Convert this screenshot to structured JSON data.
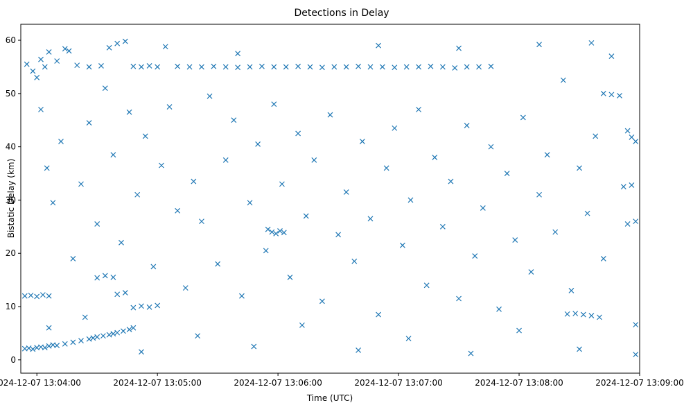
{
  "chart_data": {
    "type": "scatter",
    "title": "Detections in Delay",
    "xlabel": "Time (UTC)",
    "ylabel": "Bistatic Delay (km)",
    "marker": "x",
    "marker_color": "#1f77b4",
    "grid": false,
    "legend": "none",
    "xlim": [
      "2024-12-07 13:03:52",
      "2024-12-07 13:09:00"
    ],
    "ylim": [
      -2.5,
      63
    ],
    "x_ticks": [
      "2024-12-07 13:04:00",
      "2024-12-07 13:05:00",
      "2024-12-07 13:06:00",
      "2024-12-07 13:07:00",
      "2024-12-07 13:08:00",
      "2024-12-07 13:09:00"
    ],
    "y_ticks": [
      0,
      10,
      20,
      30,
      40,
      50,
      60
    ],
    "series": [
      {
        "points": [
          [
            "2024-12-07 13:03:54",
            2.1
          ],
          [
            "2024-12-07 13:03:56",
            2.2
          ],
          [
            "2024-12-07 13:03:58",
            2.0
          ],
          [
            "2024-12-07 13:04:00",
            2.3
          ],
          [
            "2024-12-07 13:04:02",
            2.4
          ],
          [
            "2024-12-07 13:04:04",
            2.3
          ],
          [
            "2024-12-07 13:04:06",
            2.6
          ],
          [
            "2024-12-07 13:04:08",
            2.8
          ],
          [
            "2024-12-07 13:04:10",
            2.7
          ],
          [
            "2024-12-07 13:04:14",
            3.0
          ],
          [
            "2024-12-07 13:04:18",
            3.3
          ],
          [
            "2024-12-07 13:04:22",
            3.6
          ],
          [
            "2024-12-07 13:04:26",
            3.9
          ],
          [
            "2024-12-07 13:04:28",
            4.1
          ],
          [
            "2024-12-07 13:04:30",
            4.3
          ],
          [
            "2024-12-07 13:04:33",
            4.5
          ],
          [
            "2024-12-07 13:04:36",
            4.7
          ],
          [
            "2024-12-07 13:04:38",
            4.9
          ],
          [
            "2024-12-07 13:04:40",
            5.1
          ],
          [
            "2024-12-07 13:04:43",
            5.4
          ],
          [
            "2024-12-07 13:04:46",
            5.7
          ],
          [
            "2024-12-07 13:04:48",
            6.0
          ],
          [
            "2024-12-07 13:03:54",
            12.0
          ],
          [
            "2024-12-07 13:03:57",
            12.1
          ],
          [
            "2024-12-07 13:04:00",
            11.9
          ],
          [
            "2024-12-07 13:04:03",
            12.2
          ],
          [
            "2024-12-07 13:04:06",
            12.0
          ],
          [
            "2024-12-07 13:04:30",
            15.4
          ],
          [
            "2024-12-07 13:04:34",
            15.8
          ],
          [
            "2024-12-07 13:04:38",
            15.5
          ],
          [
            "2024-12-07 13:04:40",
            12.3
          ],
          [
            "2024-12-07 13:04:44",
            12.6
          ],
          [
            "2024-12-07 13:04:48",
            9.8
          ],
          [
            "2024-12-07 13:04:52",
            10.1
          ],
          [
            "2024-12-07 13:04:56",
            9.9
          ],
          [
            "2024-12-07 13:05:00",
            10.2
          ],
          [
            "2024-12-07 13:03:55",
            55.5
          ],
          [
            "2024-12-07 13:03:58",
            54.2
          ],
          [
            "2024-12-07 13:04:00",
            53.0
          ],
          [
            "2024-12-07 13:04:02",
            56.4
          ],
          [
            "2024-12-07 13:04:04",
            55.0
          ],
          [
            "2024-12-07 13:04:06",
            57.8
          ],
          [
            "2024-12-07 13:04:10",
            56.1
          ],
          [
            "2024-12-07 13:04:14",
            58.4
          ],
          [
            "2024-12-07 13:04:20",
            55.3
          ],
          [
            "2024-12-07 13:04:26",
            55.0
          ],
          [
            "2024-12-07 13:04:32",
            55.2
          ],
          [
            "2024-12-07 13:04:36",
            58.6
          ],
          [
            "2024-12-07 13:04:40",
            59.4
          ],
          [
            "2024-12-07 13:04:44",
            59.8
          ],
          [
            "2024-12-07 13:04:48",
            55.1
          ],
          [
            "2024-12-07 13:04:52",
            55.0
          ],
          [
            "2024-12-07 13:04:56",
            55.2
          ],
          [
            "2024-12-07 13:05:00",
            55.0
          ],
          [
            "2024-12-07 13:05:04",
            58.8
          ],
          [
            "2024-12-07 13:05:10",
            55.1
          ],
          [
            "2024-12-07 13:05:16",
            55.0
          ],
          [
            "2024-12-07 13:05:22",
            55.0
          ],
          [
            "2024-12-07 13:05:28",
            55.1
          ],
          [
            "2024-12-07 13:05:34",
            55.0
          ],
          [
            "2024-12-07 13:05:40",
            54.9
          ],
          [
            "2024-12-07 13:05:46",
            55.0
          ],
          [
            "2024-12-07 13:05:52",
            55.1
          ],
          [
            "2024-12-07 13:05:58",
            55.0
          ],
          [
            "2024-12-07 13:06:04",
            55.0
          ],
          [
            "2024-12-07 13:06:10",
            55.1
          ],
          [
            "2024-12-07 13:06:16",
            55.0
          ],
          [
            "2024-12-07 13:06:22",
            54.9
          ],
          [
            "2024-12-07 13:06:28",
            55.0
          ],
          [
            "2024-12-07 13:06:34",
            55.0
          ],
          [
            "2024-12-07 13:06:40",
            55.1
          ],
          [
            "2024-12-07 13:06:46",
            55.0
          ],
          [
            "2024-12-07 13:06:52",
            55.0
          ],
          [
            "2024-12-07 13:06:58",
            54.9
          ],
          [
            "2024-12-07 13:07:04",
            55.0
          ],
          [
            "2024-12-07 13:07:10",
            55.0
          ],
          [
            "2024-12-07 13:07:16",
            55.1
          ],
          [
            "2024-12-07 13:07:22",
            55.0
          ],
          [
            "2024-12-07 13:07:28",
            54.8
          ],
          [
            "2024-12-07 13:07:34",
            55.0
          ],
          [
            "2024-12-07 13:07:40",
            55.0
          ],
          [
            "2024-12-07 13:07:46",
            55.1
          ],
          [
            "2024-12-07 13:05:55",
            24.5
          ],
          [
            "2024-12-07 13:05:57",
            24.0
          ],
          [
            "2024-12-07 13:05:59",
            23.7
          ],
          [
            "2024-12-07 13:06:01",
            24.2
          ],
          [
            "2024-12-07 13:06:03",
            23.9
          ],
          [
            "2024-12-07 13:08:24",
            8.6
          ],
          [
            "2024-12-07 13:08:28",
            8.7
          ],
          [
            "2024-12-07 13:08:32",
            8.5
          ],
          [
            "2024-12-07 13:08:36",
            8.3
          ],
          [
            "2024-12-07 13:08:40",
            8.0
          ],
          [
            "2024-12-07 13:08:42",
            50.0
          ],
          [
            "2024-12-07 13:08:46",
            49.8
          ],
          [
            "2024-12-07 13:08:50",
            49.6
          ],
          [
            "2024-12-07 13:08:54",
            43.0
          ],
          [
            "2024-12-07 13:08:56",
            41.8
          ],
          [
            "2024-12-07 13:08:58",
            41.0
          ],
          [
            "2024-12-07 13:08:52",
            32.5
          ],
          [
            "2024-12-07 13:08:56",
            32.8
          ],
          [
            "2024-12-07 13:08:54",
            25.5
          ],
          [
            "2024-12-07 13:08:58",
            26.0
          ],
          [
            "2024-12-07 13:08:58",
            6.6
          ],
          [
            "2024-12-07 13:08:58",
            1.0
          ],
          [
            "2024-12-07 13:04:02",
            47.0
          ],
          [
            "2024-12-07 13:04:05",
            36.0
          ],
          [
            "2024-12-07 13:04:08",
            29.5
          ],
          [
            "2024-12-07 13:04:12",
            41.0
          ],
          [
            "2024-12-07 13:04:18",
            19.0
          ],
          [
            "2024-12-07 13:04:22",
            33.0
          ],
          [
            "2024-12-07 13:04:26",
            44.5
          ],
          [
            "2024-12-07 13:04:30",
            25.5
          ],
          [
            "2024-12-07 13:04:34",
            51.0
          ],
          [
            "2024-12-07 13:04:38",
            38.5
          ],
          [
            "2024-12-07 13:04:42",
            22.0
          ],
          [
            "2024-12-07 13:04:46",
            46.5
          ],
          [
            "2024-12-07 13:04:50",
            31.0
          ],
          [
            "2024-12-07 13:04:54",
            42.0
          ],
          [
            "2024-12-07 13:04:58",
            17.5
          ],
          [
            "2024-12-07 13:05:02",
            36.5
          ],
          [
            "2024-12-07 13:05:06",
            47.5
          ],
          [
            "2024-12-07 13:05:10",
            28.0
          ],
          [
            "2024-12-07 13:05:14",
            13.5
          ],
          [
            "2024-12-07 13:05:18",
            33.5
          ],
          [
            "2024-12-07 13:05:22",
            26.0
          ],
          [
            "2024-12-07 13:05:26",
            49.5
          ],
          [
            "2024-12-07 13:05:30",
            18.0
          ],
          [
            "2024-12-07 13:05:34",
            37.5
          ],
          [
            "2024-12-07 13:05:38",
            45.0
          ],
          [
            "2024-12-07 13:05:42",
            12.0
          ],
          [
            "2024-12-07 13:05:46",
            29.5
          ],
          [
            "2024-12-07 13:05:50",
            40.5
          ],
          [
            "2024-12-07 13:05:54",
            20.5
          ],
          [
            "2024-12-07 13:05:58",
            48.0
          ],
          [
            "2024-12-07 13:06:02",
            33.0
          ],
          [
            "2024-12-07 13:06:06",
            15.5
          ],
          [
            "2024-12-07 13:06:10",
            42.5
          ],
          [
            "2024-12-07 13:06:14",
            27.0
          ],
          [
            "2024-12-07 13:06:18",
            37.5
          ],
          [
            "2024-12-07 13:06:22",
            11.0
          ],
          [
            "2024-12-07 13:06:26",
            46.0
          ],
          [
            "2024-12-07 13:06:30",
            23.5
          ],
          [
            "2024-12-07 13:06:34",
            31.5
          ],
          [
            "2024-12-07 13:06:38",
            18.5
          ],
          [
            "2024-12-07 13:06:42",
            41.0
          ],
          [
            "2024-12-07 13:06:46",
            26.5
          ],
          [
            "2024-12-07 13:06:50",
            8.5
          ],
          [
            "2024-12-07 13:06:54",
            36.0
          ],
          [
            "2024-12-07 13:06:58",
            43.5
          ],
          [
            "2024-12-07 13:07:02",
            21.5
          ],
          [
            "2024-12-07 13:07:06",
            30.0
          ],
          [
            "2024-12-07 13:07:10",
            47.0
          ],
          [
            "2024-12-07 13:07:14",
            14.0
          ],
          [
            "2024-12-07 13:07:18",
            38.0
          ],
          [
            "2024-12-07 13:07:22",
            25.0
          ],
          [
            "2024-12-07 13:07:26",
            33.5
          ],
          [
            "2024-12-07 13:07:30",
            11.5
          ],
          [
            "2024-12-07 13:07:34",
            44.0
          ],
          [
            "2024-12-07 13:07:38",
            19.5
          ],
          [
            "2024-12-07 13:07:42",
            28.5
          ],
          [
            "2024-12-07 13:07:46",
            40.0
          ],
          [
            "2024-12-07 13:07:50",
            9.5
          ],
          [
            "2024-12-07 13:07:54",
            35.0
          ],
          [
            "2024-12-07 13:07:58",
            22.5
          ],
          [
            "2024-12-07 13:08:02",
            45.5
          ],
          [
            "2024-12-07 13:08:06",
            16.5
          ],
          [
            "2024-12-07 13:08:10",
            31.0
          ],
          [
            "2024-12-07 13:08:14",
            38.5
          ],
          [
            "2024-12-07 13:08:18",
            24.0
          ],
          [
            "2024-12-07 13:08:22",
            52.5
          ],
          [
            "2024-12-07 13:08:26",
            13.0
          ],
          [
            "2024-12-07 13:08:30",
            36.0
          ],
          [
            "2024-12-07 13:08:34",
            27.5
          ],
          [
            "2024-12-07 13:08:38",
            42.0
          ],
          [
            "2024-12-07 13:08:42",
            19.0
          ],
          [
            "2024-12-07 13:08:46",
            57.0
          ],
          [
            "2024-12-07 13:04:06",
            6.0
          ],
          [
            "2024-12-07 13:04:24",
            8.0
          ],
          [
            "2024-12-07 13:04:52",
            1.5
          ],
          [
            "2024-12-07 13:05:20",
            4.5
          ],
          [
            "2024-12-07 13:05:48",
            2.5
          ],
          [
            "2024-12-07 13:06:12",
            6.5
          ],
          [
            "2024-12-07 13:06:40",
            1.8
          ],
          [
            "2024-12-07 13:07:05",
            4.0
          ],
          [
            "2024-12-07 13:07:36",
            1.2
          ],
          [
            "2024-12-07 13:08:00",
            5.5
          ],
          [
            "2024-12-07 13:08:30",
            2.0
          ],
          [
            "2024-12-07 13:04:16",
            58.0
          ],
          [
            "2024-12-07 13:05:40",
            57.5
          ],
          [
            "2024-12-07 13:06:50",
            59.0
          ],
          [
            "2024-12-07 13:07:30",
            58.5
          ],
          [
            "2024-12-07 13:08:10",
            59.2
          ],
          [
            "2024-12-07 13:08:36",
            59.5
          ]
        ]
      }
    ]
  }
}
